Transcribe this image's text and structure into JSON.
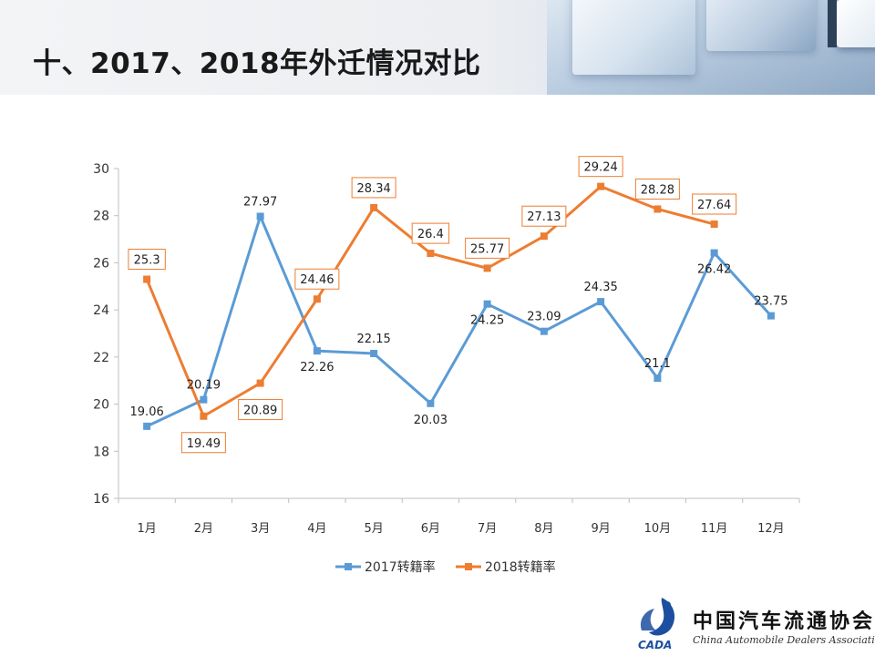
{
  "title": "十、2017、2018年外迁情况对比",
  "logo": {
    "cn_name": "中国汽车流通协会",
    "en_name": "China Automobile Dealers Association",
    "mark_text": "CADA"
  },
  "colors": {
    "series_2017": "#5b9bd5",
    "series_2018": "#ed7d31"
  },
  "chart_data": {
    "type": "line",
    "categories": [
      "1月",
      "2月",
      "3月",
      "4月",
      "5月",
      "6月",
      "7月",
      "8月",
      "9月",
      "10月",
      "11月",
      "12月"
    ],
    "series": [
      {
        "name": "2017转籍率",
        "values": [
          19.06,
          20.19,
          27.97,
          22.26,
          22.15,
          20.03,
          24.25,
          23.09,
          24.35,
          21.1,
          26.42,
          23.75
        ],
        "color": "#5b9bd5",
        "marker": "square",
        "label_boxes": false
      },
      {
        "name": "2018转籍率",
        "values": [
          25.3,
          19.49,
          20.89,
          24.46,
          28.34,
          26.4,
          25.77,
          27.13,
          29.24,
          28.28,
          27.64,
          null
        ],
        "color": "#ed7d31",
        "marker": "square",
        "label_boxes": true
      }
    ],
    "data_labels": {
      "2017": [
        "19.06",
        "20.19",
        "27.97",
        "22.26",
        "22.15",
        "20.03",
        "24.25",
        "23.09",
        "24.35",
        "21.1",
        "26.42",
        "23.75"
      ],
      "2018": [
        "25.3",
        "19.49",
        "20.89",
        "24.46",
        "28.34",
        "26.4",
        "25.77",
        "27.13",
        "29.24",
        "28.28",
        "27.64",
        ""
      ]
    },
    "ylim": [
      16,
      30
    ],
    "yticks": [
      "16",
      "18",
      "20",
      "22",
      "24",
      "26",
      "28",
      "30"
    ],
    "grid": false,
    "legend": "bottom",
    "title": "",
    "xlabel": "",
    "ylabel": ""
  }
}
